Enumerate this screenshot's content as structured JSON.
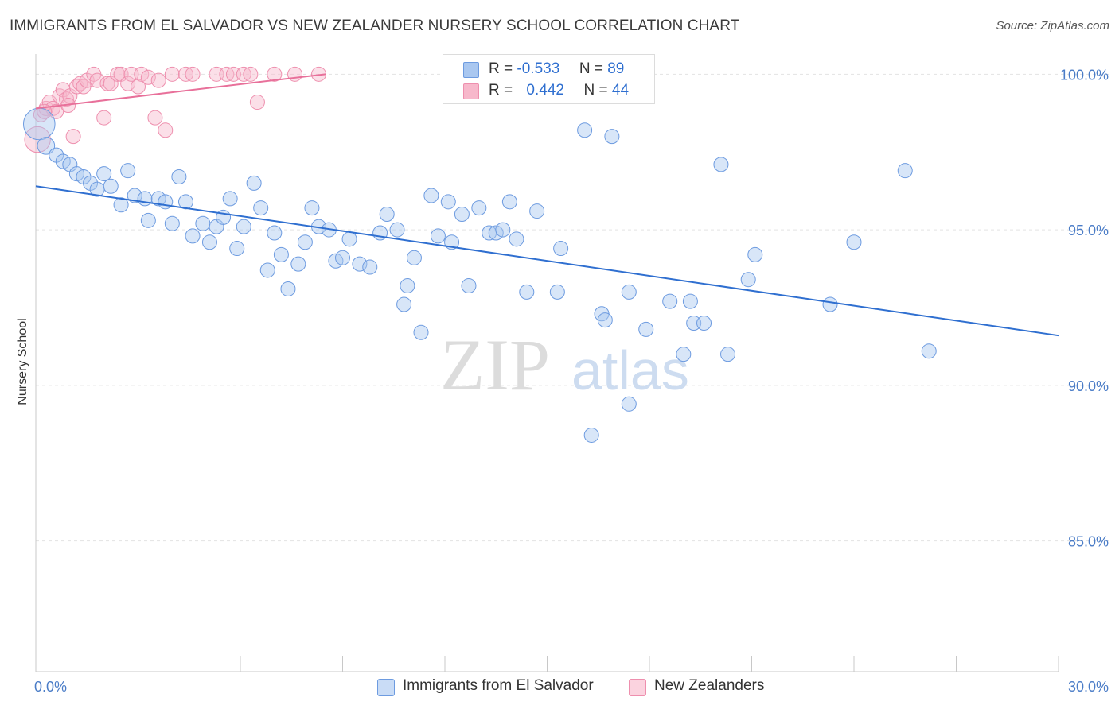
{
  "header": {
    "title": "IMMIGRANTS FROM EL SALVADOR VS NEW ZEALANDER NURSERY SCHOOL CORRELATION CHART",
    "source": "Source: ZipAtlas.com"
  },
  "watermark": {
    "zip": "ZIP",
    "atlas": "atlas"
  },
  "legend": {
    "rows": [
      {
        "r_label": "R =",
        "r_value": "-0.533",
        "n_label": "N =",
        "n_value": "89",
        "color": "#a9c7f0"
      },
      {
        "r_label": "R =",
        "r_value": "0.442",
        "n_label": "N =",
        "n_value": "44",
        "color": "#f7b8cb"
      }
    ]
  },
  "bottom_legend": [
    {
      "label": "Immigrants from El Salvador",
      "color": "#a9c7f0"
    },
    {
      "label": "New Zealanders",
      "color": "#f7b8cb"
    }
  ],
  "colors": {
    "blue_fill": "#a9c7f0",
    "blue_stroke": "#6d9be0",
    "blue_line": "#2f6fd0",
    "pink_fill": "#f7b8cb",
    "pink_stroke": "#ee8fae",
    "pink_line": "#e8709a",
    "grid": "#e3e3e3",
    "tick_text": "#4a7cc7"
  },
  "chart_data": {
    "type": "scatter",
    "title": "IMMIGRANTS FROM EL SALVADOR VS NEW ZEALANDER NURSERY SCHOOL CORRELATION CHART",
    "xlabel": "",
    "ylabel": "Nursery School",
    "xlim": [
      0,
      30
    ],
    "ylim": [
      80.8,
      100.8
    ],
    "x_tick_labels": [
      "0.0%",
      "30.0%"
    ],
    "y_ticks": [
      85,
      90,
      95,
      100
    ],
    "y_tick_labels": [
      "85.0%",
      "90.0%",
      "95.0%",
      "100.0%"
    ],
    "grid": "horizontal dashed",
    "legend_placement": "top-center",
    "series": [
      {
        "name": "Immigrants from El Salvador",
        "color": "#a9c7f0",
        "trend": {
          "x": [
            0,
            30
          ],
          "y": [
            96.4,
            91.6
          ]
        },
        "points": [
          [
            0.1,
            98.4,
            2.2
          ],
          [
            0.3,
            97.7,
            1.2
          ],
          [
            0.6,
            97.4,
            1
          ],
          [
            0.8,
            97.2,
            1
          ],
          [
            1.0,
            97.1,
            1
          ],
          [
            1.2,
            96.8,
            1
          ],
          [
            1.4,
            96.7,
            1
          ],
          [
            1.6,
            96.5,
            1
          ],
          [
            1.8,
            96.3,
            1
          ],
          [
            2.0,
            96.8,
            1
          ],
          [
            2.2,
            96.4,
            1
          ],
          [
            2.5,
            95.8,
            1
          ],
          [
            2.7,
            96.9,
            1
          ],
          [
            2.9,
            96.1,
            1
          ],
          [
            3.2,
            96.0,
            1
          ],
          [
            3.3,
            95.3,
            1
          ],
          [
            3.6,
            96.0,
            1
          ],
          [
            3.8,
            95.9,
            1
          ],
          [
            4.0,
            95.2,
            1
          ],
          [
            4.2,
            96.7,
            1
          ],
          [
            4.4,
            95.9,
            1
          ],
          [
            4.6,
            94.8,
            1
          ],
          [
            4.9,
            95.2,
            1
          ],
          [
            5.1,
            94.6,
            1
          ],
          [
            5.3,
            95.1,
            1
          ],
          [
            5.5,
            95.4,
            1
          ],
          [
            5.7,
            96.0,
            1
          ],
          [
            5.9,
            94.4,
            1
          ],
          [
            6.1,
            95.1,
            1
          ],
          [
            6.4,
            96.5,
            1
          ],
          [
            6.6,
            95.7,
            1
          ],
          [
            6.8,
            93.7,
            1
          ],
          [
            7.0,
            94.9,
            1
          ],
          [
            7.2,
            94.2,
            1
          ],
          [
            7.4,
            93.1,
            1
          ],
          [
            7.7,
            93.9,
            1
          ],
          [
            7.9,
            94.6,
            1
          ],
          [
            8.1,
            95.7,
            1
          ],
          [
            8.3,
            95.1,
            1
          ],
          [
            8.6,
            95.0,
            1
          ],
          [
            8.8,
            94.0,
            1
          ],
          [
            9.0,
            94.1,
            1
          ],
          [
            9.2,
            94.7,
            1
          ],
          [
            9.5,
            93.9,
            1
          ],
          [
            9.8,
            93.8,
            1
          ],
          [
            10.1,
            94.9,
            1
          ],
          [
            10.3,
            95.5,
            1
          ],
          [
            10.6,
            95.0,
            1
          ],
          [
            10.8,
            92.6,
            1
          ],
          [
            10.9,
            93.2,
            1
          ],
          [
            11.1,
            94.1,
            1
          ],
          [
            11.3,
            91.7,
            1
          ],
          [
            11.6,
            96.1,
            1
          ],
          [
            11.8,
            94.8,
            1
          ],
          [
            12.1,
            95.9,
            1
          ],
          [
            12.2,
            94.6,
            1
          ],
          [
            12.5,
            95.5,
            1
          ],
          [
            12.7,
            93.2,
            1
          ],
          [
            13.0,
            95.7,
            1
          ],
          [
            13.3,
            94.9,
            1
          ],
          [
            13.5,
            94.9,
            1
          ],
          [
            13.7,
            95.0,
            1
          ],
          [
            13.9,
            95.9,
            1
          ],
          [
            14.1,
            94.7,
            1
          ],
          [
            14.4,
            93.0,
            1
          ],
          [
            14.7,
            95.6,
            1
          ],
          [
            15.3,
            93.0,
            1
          ],
          [
            15.4,
            94.4,
            1
          ],
          [
            16.1,
            98.2,
            1
          ],
          [
            16.3,
            88.4,
            1
          ],
          [
            16.6,
            92.3,
            1
          ],
          [
            16.7,
            92.1,
            1
          ],
          [
            16.9,
            98.0,
            1
          ],
          [
            17.4,
            93.0,
            1
          ],
          [
            17.4,
            89.4,
            1
          ],
          [
            17.9,
            91.8,
            1
          ],
          [
            18.6,
            92.7,
            1
          ],
          [
            19.0,
            91.0,
            1
          ],
          [
            19.2,
            92.7,
            1
          ],
          [
            19.3,
            92.0,
            1
          ],
          [
            19.6,
            92.0,
            1
          ],
          [
            20.1,
            97.1,
            1
          ],
          [
            20.3,
            91.0,
            1
          ],
          [
            20.9,
            93.4,
            1
          ],
          [
            21.1,
            94.2,
            1
          ],
          [
            23.3,
            92.6,
            1
          ],
          [
            24.0,
            94.6,
            1
          ],
          [
            25.5,
            96.9,
            1
          ],
          [
            26.2,
            91.1,
            1
          ]
        ]
      },
      {
        "name": "New Zealanders",
        "color": "#f7b8cb",
        "trend": {
          "x": [
            0,
            8.5
          ],
          "y": [
            98.9,
            100.0
          ]
        },
        "points": [
          [
            0.05,
            97.9,
            1.8
          ],
          [
            0.15,
            98.7,
            1
          ],
          [
            0.3,
            98.9,
            1
          ],
          [
            0.4,
            99.1,
            1
          ],
          [
            0.5,
            98.9,
            1
          ],
          [
            0.6,
            98.8,
            1
          ],
          [
            0.7,
            99.3,
            1
          ],
          [
            0.8,
            99.5,
            1
          ],
          [
            0.9,
            99.2,
            1
          ],
          [
            1.0,
            99.3,
            1
          ],
          [
            1.1,
            98.0,
            1
          ],
          [
            1.2,
            99.6,
            1
          ],
          [
            1.3,
            99.7,
            1
          ],
          [
            1.4,
            99.6,
            1
          ],
          [
            1.5,
            99.8,
            1
          ],
          [
            1.7,
            100.0,
            1
          ],
          [
            1.8,
            99.8,
            1
          ],
          [
            2.0,
            98.6,
            1
          ],
          [
            2.1,
            99.7,
            1
          ],
          [
            2.2,
            99.7,
            1
          ],
          [
            2.4,
            100.0,
            1
          ],
          [
            2.5,
            100.0,
            1
          ],
          [
            2.7,
            99.7,
            1
          ],
          [
            2.8,
            100.0,
            1
          ],
          [
            3.0,
            99.6,
            1
          ],
          [
            3.1,
            100.0,
            1
          ],
          [
            3.3,
            99.9,
            1
          ],
          [
            3.5,
            98.6,
            1
          ],
          [
            3.6,
            99.8,
            1
          ],
          [
            3.8,
            98.2,
            1
          ],
          [
            4.0,
            100.0,
            1
          ],
          [
            4.4,
            100.0,
            1
          ],
          [
            4.6,
            100.0,
            1
          ],
          [
            5.3,
            100.0,
            1
          ],
          [
            5.6,
            100.0,
            1
          ],
          [
            5.8,
            100.0,
            1
          ],
          [
            6.1,
            100.0,
            1
          ],
          [
            6.3,
            100.0,
            1
          ],
          [
            6.5,
            99.1,
            1
          ],
          [
            7.0,
            100.0,
            1
          ],
          [
            7.6,
            100.0,
            1
          ],
          [
            8.3,
            100.0,
            1
          ],
          [
            0.25,
            98.8,
            1
          ],
          [
            0.95,
            99.0,
            1
          ]
        ]
      }
    ]
  }
}
